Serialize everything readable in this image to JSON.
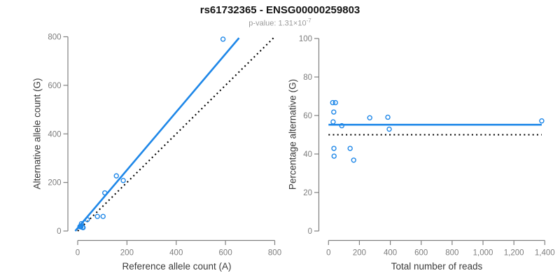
{
  "header": {
    "title": "rs61732365 - ENSG00000259803",
    "subtitle_prefix": "p-value: ",
    "subtitle_base": "1.31×10",
    "subtitle_exponent": "-7"
  },
  "colors": {
    "accent_blue": "#1e87e8",
    "dotted_black": "#000000",
    "axis_line": "#808080",
    "tick_label": "#7d7d7d",
    "axis_title": "#3a3a3a",
    "title": "#141414",
    "subtitle": "#9a9a9a",
    "background": "#ffffff"
  },
  "chart_data": [
    {
      "id": "allele-counts",
      "type": "scatter",
      "xlabel": "Reference allele count (A)",
      "ylabel": "Alternative allele count (G)",
      "xlim": [
        0,
        800
      ],
      "ylim": [
        0,
        800
      ],
      "x_tick_values": [
        0,
        200,
        400,
        600,
        800
      ],
      "x_tick_labels": [
        "0",
        "200",
        "400",
        "600",
        "800"
      ],
      "y_tick_values": [
        0,
        200,
        400,
        600,
        800
      ],
      "y_tick_labels": [
        "0",
        "200",
        "400",
        "600",
        "800"
      ],
      "grid": false,
      "points": [
        [
          9,
          18
        ],
        [
          13,
          21
        ],
        [
          13,
          17
        ],
        [
          15,
          30
        ],
        [
          20,
          15
        ],
        [
          22,
          14
        ],
        [
          39,
          47
        ],
        [
          80,
          60
        ],
        [
          103,
          60
        ],
        [
          110,
          157
        ],
        [
          157,
          227
        ],
        [
          185,
          208
        ],
        [
          590,
          790
        ]
      ],
      "lines": [
        {
          "name": "identity-line",
          "style": "dotted",
          "color_key": "dotted_black",
          "from": [
            0,
            0
          ],
          "to": [
            795,
            795
          ]
        },
        {
          "name": "regression-line",
          "style": "solid",
          "color_key": "accent_blue",
          "from": [
            -10,
            0
          ],
          "to": [
            655,
            795
          ]
        }
      ]
    },
    {
      "id": "percentage-alternative",
      "type": "scatter",
      "xlabel": "Total number of reads",
      "ylabel": "Percentage alternative (G)",
      "xlim": [
        0,
        1400
      ],
      "ylim": [
        0,
        100
      ],
      "x_tick_values": [
        0,
        200,
        400,
        600,
        800,
        1000,
        1200,
        1400
      ],
      "x_tick_labels": [
        "0",
        "200",
        "400",
        "600",
        "800",
        "1,000",
        "1,200",
        "1,400"
      ],
      "y_tick_values": [
        0,
        20,
        40,
        60,
        80,
        100
      ],
      "y_tick_labels": [
        "0",
        "20",
        "40",
        "60",
        "80",
        "100"
      ],
      "grid": false,
      "points": [
        [
          27,
          66.7
        ],
        [
          34,
          61.8
        ],
        [
          30,
          56.7
        ],
        [
          45,
          66.7
        ],
        [
          35,
          42.9
        ],
        [
          36,
          38.9
        ],
        [
          86,
          54.7
        ],
        [
          140,
          42.9
        ],
        [
          163,
          36.8
        ],
        [
          267,
          58.8
        ],
        [
          384,
          59.1
        ],
        [
          393,
          52.9
        ],
        [
          1380,
          57.2
        ]
      ],
      "lines": [
        {
          "name": "null-line",
          "style": "dotted",
          "color_key": "dotted_black",
          "from": [
            0,
            50
          ],
          "to": [
            1380,
            50
          ]
        },
        {
          "name": "fitted-line",
          "style": "solid",
          "color_key": "accent_blue",
          "from": [
            0,
            55.2
          ],
          "to": [
            1380,
            55.2
          ]
        }
      ]
    }
  ]
}
